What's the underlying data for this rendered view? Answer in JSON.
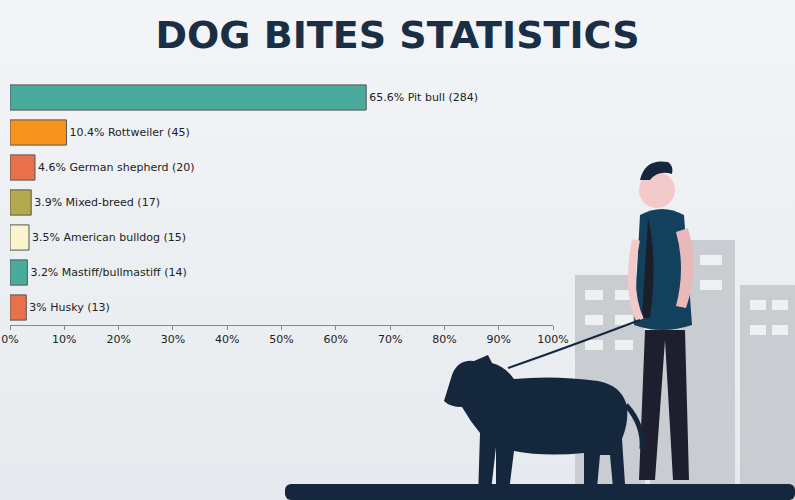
{
  "chart_data": {
    "type": "bar",
    "title": "DOG BITES STATISTICS",
    "orientation": "horizontal",
    "categories": [
      "Pit bull",
      "Rottweiler",
      "German shepherd",
      "Mixed-breed",
      "American bulldog",
      "Mastiff/bullmastiff",
      "Husky"
    ],
    "values": [
      65.6,
      10.4,
      4.6,
      3.9,
      3.5,
      3.2,
      3
    ],
    "value_labels": [
      "65.6% Pit bull (284)",
      "10.4% Rottweiler (45)",
      "4.6% German shepherd (20)",
      "3.9% Mixed-breed (17)",
      "3.5% American bulldog (15)",
      "3.2% Mastiff/bullmastiff (14)",
      "3% Husky (13)"
    ],
    "colors": [
      "#4aab9c",
      "#f7941d",
      "#e8704a",
      "#b5a94f",
      "#fbf3cc",
      "#4aab9c",
      "#e8704a"
    ],
    "data_labels": true,
    "xlim": [
      0,
      100
    ],
    "xticks": [
      {
        "value": 0,
        "label": "0%"
      },
      {
        "value": 10,
        "label": "10%"
      },
      {
        "value": 20,
        "label": "20%"
      },
      {
        "value": 30,
        "label": "30%"
      },
      {
        "value": 40,
        "label": "40%"
      },
      {
        "value": 50,
        "label": "50%"
      },
      {
        "value": 60,
        "label": "60%"
      },
      {
        "value": 70,
        "label": "70%"
      },
      {
        "value": 80,
        "label": "80%"
      },
      {
        "value": 90,
        "label": "90%"
      },
      {
        "value": 100,
        "label": "100%"
      }
    ],
    "grid": false,
    "tick_labels": "x"
  }
}
